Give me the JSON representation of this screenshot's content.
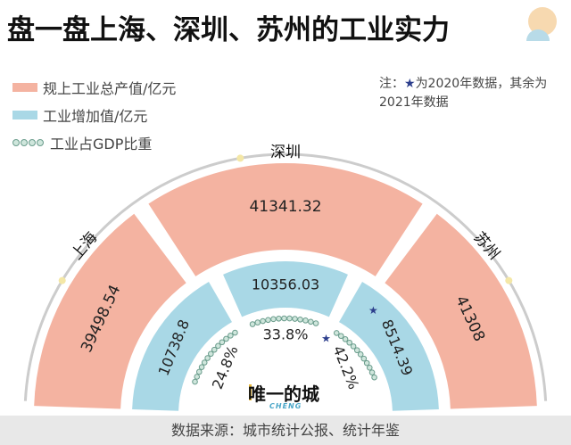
{
  "title": "盘一盘上海、深圳、苏州的工业实力",
  "legend": {
    "gross": "规上工业总产值/亿元",
    "added": "工业增加值/亿元",
    "share": "工业占GDP比重"
  },
  "note": {
    "star": "★",
    "text": "为2020年数据，其余为2021年数据",
    "prefix": "注："
  },
  "source": "数据来源：城市统计公报、统计年鉴",
  "logo": {
    "name": "唯一的城",
    "sub": "CHENG"
  },
  "colors": {
    "gross": "#f4b3a1",
    "added": "#a9d8e6",
    "arc": "#cccccc",
    "star": "#2c3e8c",
    "dots_fill": "#cfe6dc",
    "dots_stroke": "#6a9c8c"
  },
  "chart_data": {
    "type": "radial-bar",
    "categories": [
      "上海",
      "深圳",
      "苏州"
    ],
    "series": [
      {
        "name": "规上工业总产值/亿元",
        "values": [
          "39498.54",
          "41341.32",
          "41308"
        ]
      },
      {
        "name": "工业增加值/亿元",
        "values": [
          "10738.8",
          "10356.03",
          "8514.39"
        ]
      },
      {
        "name": "工业占GDP比重",
        "values": [
          "24.8%",
          "33.8%",
          "42.2%"
        ]
      }
    ],
    "starred": [
      false,
      false,
      true
    ]
  }
}
